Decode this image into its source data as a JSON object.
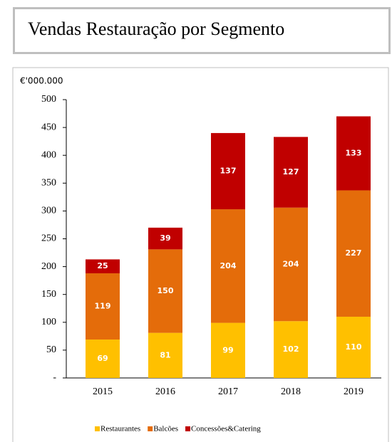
{
  "chart_data": {
    "type": "bar",
    "stacked": true,
    "title": "Vendas Restauração por Segmento",
    "ylabel": "€'000.000",
    "categories": [
      "2015",
      "2016",
      "2017",
      "2018",
      "2019"
    ],
    "series": [
      {
        "name": "Restaurantes",
        "color": "#FFC000",
        "values": [
          69,
          81,
          99,
          102,
          110
        ]
      },
      {
        "name": "Balcões",
        "color": "#E46C0A",
        "values": [
          119,
          150,
          204,
          204,
          227
        ]
      },
      {
        "name": "Concessões&Catering",
        "color": "#C00000",
        "values": [
          25,
          39,
          137,
          127,
          133
        ]
      }
    ],
    "ylim": [
      0,
      500
    ],
    "yticks": [
      {
        "value": 0,
        "label": "-"
      },
      50,
      100,
      150,
      200,
      250,
      300,
      350,
      400,
      450,
      500
    ],
    "grid": false
  }
}
